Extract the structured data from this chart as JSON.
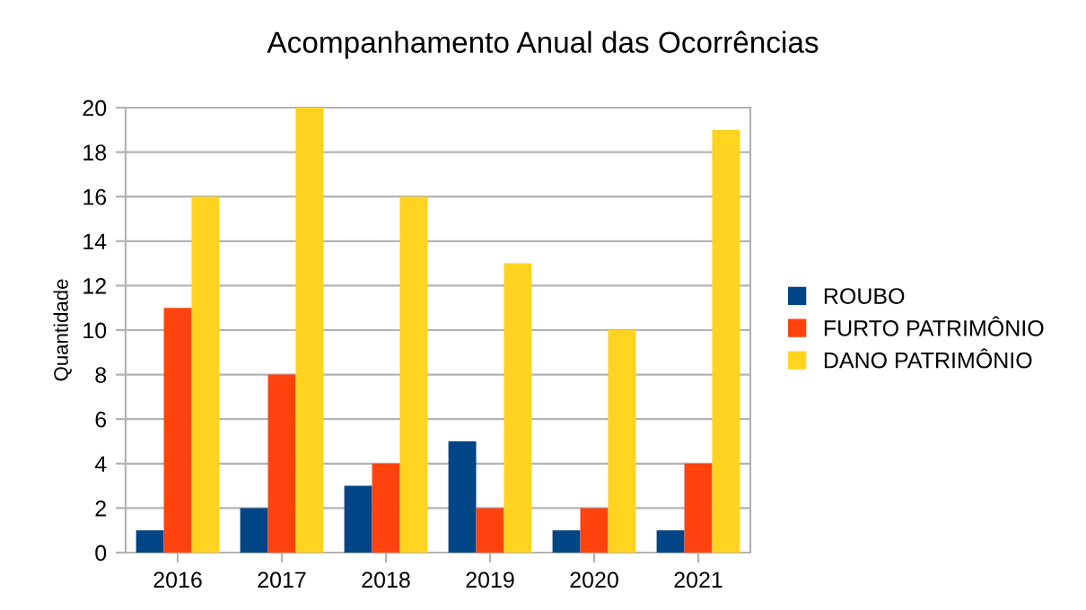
{
  "chart_data": {
    "type": "bar",
    "title": "Acompanhamento Anual das Ocorrências",
    "ylabel": "Quantidade",
    "categories": [
      "2016",
      "2017",
      "2018",
      "2019",
      "2020",
      "2021"
    ],
    "series": [
      {
        "name": "ROUBO",
        "color": "#004586",
        "values": [
          1,
          2,
          3,
          5,
          1,
          1
        ]
      },
      {
        "name": "FURTO PATRIMÔNIO",
        "color": "#ff420e",
        "values": [
          11,
          8,
          4,
          2,
          2,
          4
        ]
      },
      {
        "name": "DANO PATRIMÔNIO",
        "color": "#ffd320",
        "values": [
          16,
          20,
          16,
          13,
          10,
          19
        ]
      }
    ],
    "ylim": [
      0,
      20
    ],
    "yticks": [
      0,
      2,
      4,
      6,
      8,
      10,
      12,
      14,
      16,
      18,
      20
    ],
    "grid": "y",
    "legend": "right"
  }
}
